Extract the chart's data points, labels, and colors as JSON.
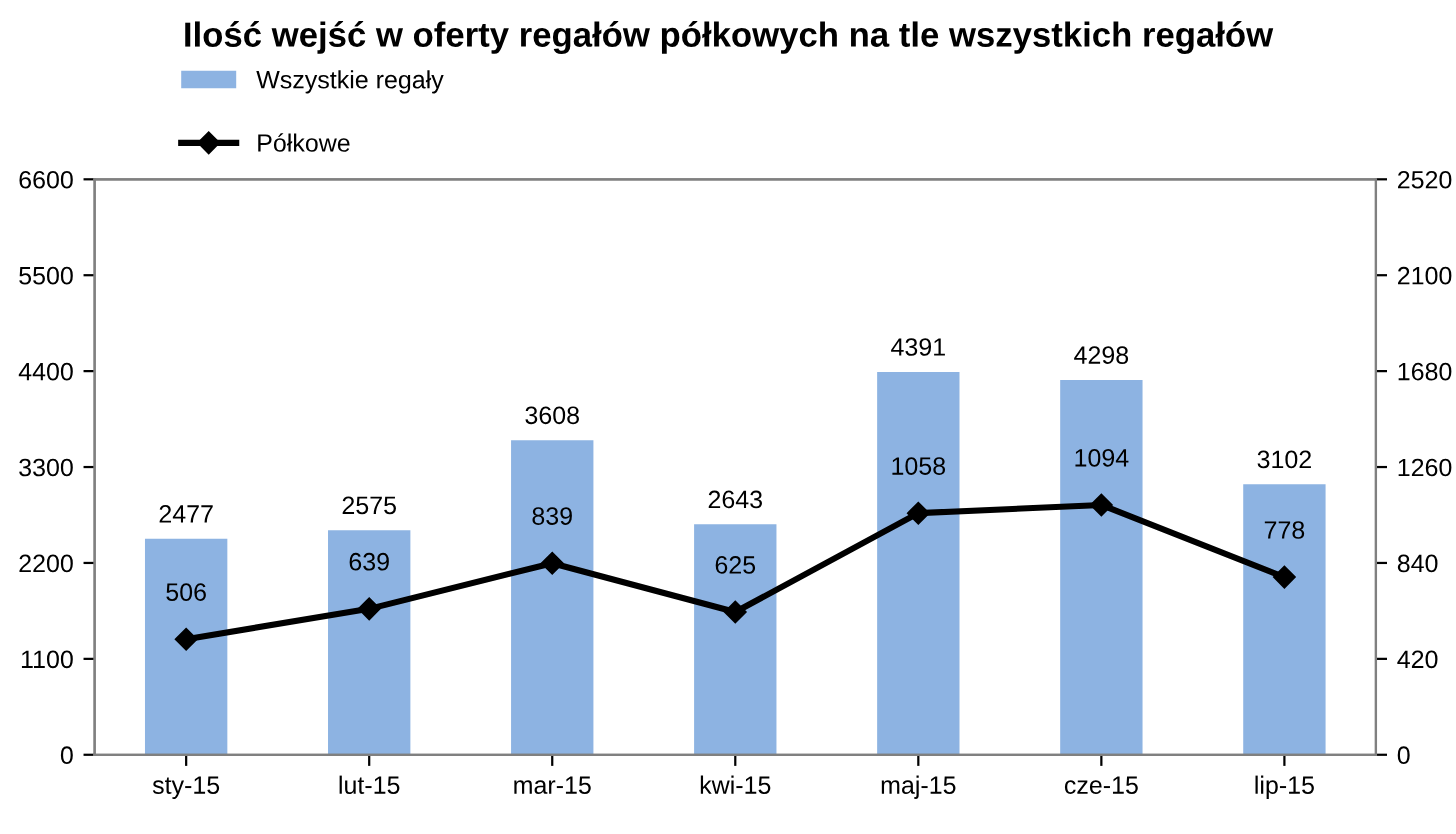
{
  "chart_data": {
    "type": "bar",
    "title": "Ilość wejść w oferty regałów półkowych na tle wszystkich regałów",
    "categories": [
      "sty-15",
      "lut-15",
      "mar-15",
      "kwi-15",
      "maj-15",
      "cze-15",
      "lip-15"
    ],
    "series": [
      {
        "name": "Wszystkie regały",
        "color": "#8db3e2",
        "values": [
          2477,
          2575,
          3608,
          2643,
          4391,
          4298,
          3102
        ]
      },
      {
        "name": "Półkowe",
        "type": "line",
        "axis": "y2",
        "color": "#000000",
        "marker": "diamond",
        "values": [
          506,
          639,
          839,
          625,
          1058,
          1094,
          778
        ]
      }
    ],
    "ylim": [
      0,
      6600
    ],
    "yticks": [
      0,
      1100,
      2200,
      3300,
      4400,
      5500,
      6600
    ],
    "y2lim": [
      0,
      2520
    ],
    "y2ticks": [
      0,
      420,
      840,
      1260,
      1680,
      2100,
      2520
    ],
    "data_labels": true,
    "grid": false,
    "legend": "top left"
  }
}
